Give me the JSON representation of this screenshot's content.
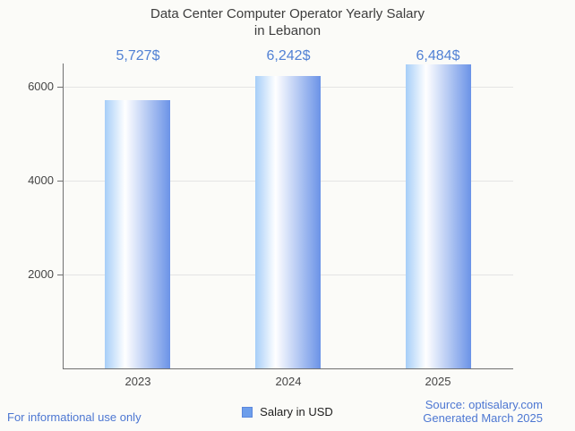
{
  "title": {
    "line1": "Data Center Computer Operator Yearly Salary",
    "line2": "in Lebanon"
  },
  "chart_data": {
    "type": "bar",
    "title": "Data Center Computer Operator Yearly Salary in Lebanon",
    "categories": [
      "2023",
      "2024",
      "2025"
    ],
    "series": [
      {
        "name": "Salary in USD",
        "values": [
          5727,
          6242,
          6484
        ]
      }
    ],
    "value_labels": [
      "5,727$",
      "6,242$",
      "6,484$"
    ],
    "xlabel": "",
    "ylabel": "",
    "ylim": [
      0,
      6500
    ],
    "yticks": [
      2000,
      4000,
      6000
    ],
    "grid": true,
    "legend_position": "bottom",
    "bar_gradient": [
      "#a6cef8",
      "#ffffff",
      "#6b93e7"
    ]
  },
  "legend": {
    "label": "Salary in USD",
    "swatch_color": "#6d9eeb"
  },
  "footer": {
    "left": "For informational use only",
    "source": "Source: optisalary.com",
    "generated": "Generated March 2025"
  },
  "colors": {
    "background": "#fbfbf8",
    "title_text": "#3d3d3d",
    "axis_text": "#454545",
    "axis_line": "#707070",
    "gridline": "#e4e4e4",
    "value_label_text": "#5181d4",
    "footer_text": "#4d77d2",
    "legend_text": "#202020"
  }
}
